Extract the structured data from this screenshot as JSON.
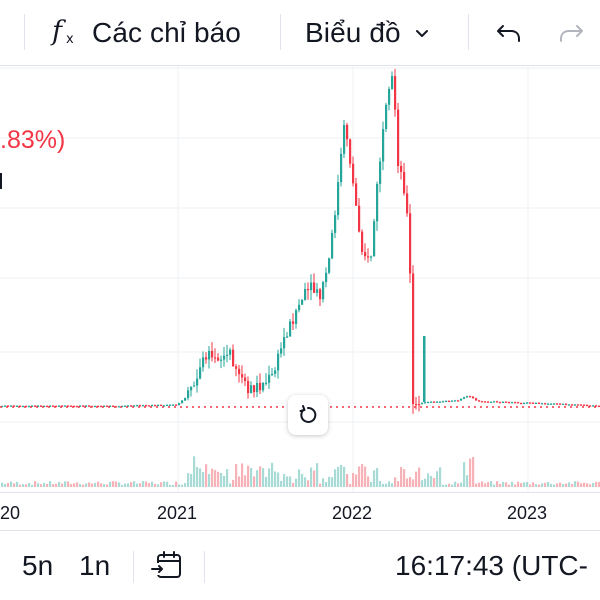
{
  "toolbar": {
    "indicators_label": "Các chỉ báo",
    "chart_type_label": "Biểu đồ",
    "indicators_icon": "function-fx-icon",
    "chart_type_icon": "chevron-down-icon",
    "undo_icon": "undo-icon",
    "redo_icon": "redo-icon"
  },
  "legend": {
    "change_percent": ".83%)"
  },
  "time_axis": {
    "labels": [
      "20",
      "2021",
      "2022",
      "2023"
    ]
  },
  "bottom_bar": {
    "range_5y": "5n",
    "range_1y": "1n",
    "date_range_icon": "calendar-goto-icon",
    "clock": "16:17:43 (UTC-"
  },
  "colors": {
    "up": "#26a69a",
    "down": "#f23645",
    "volume_up": "#a8dbd5",
    "volume_down": "#f7b2b8",
    "grid": "#eef0f3",
    "price_line": "#f23645"
  },
  "chart_data": {
    "type": "candlestick",
    "x_labels": [
      "2021",
      "2022",
      "2023"
    ],
    "price_line": "dotted, current price",
    "series": [
      {
        "name": "price",
        "style": "candles"
      },
      {
        "name": "volume",
        "style": "bars"
      }
    ]
  }
}
